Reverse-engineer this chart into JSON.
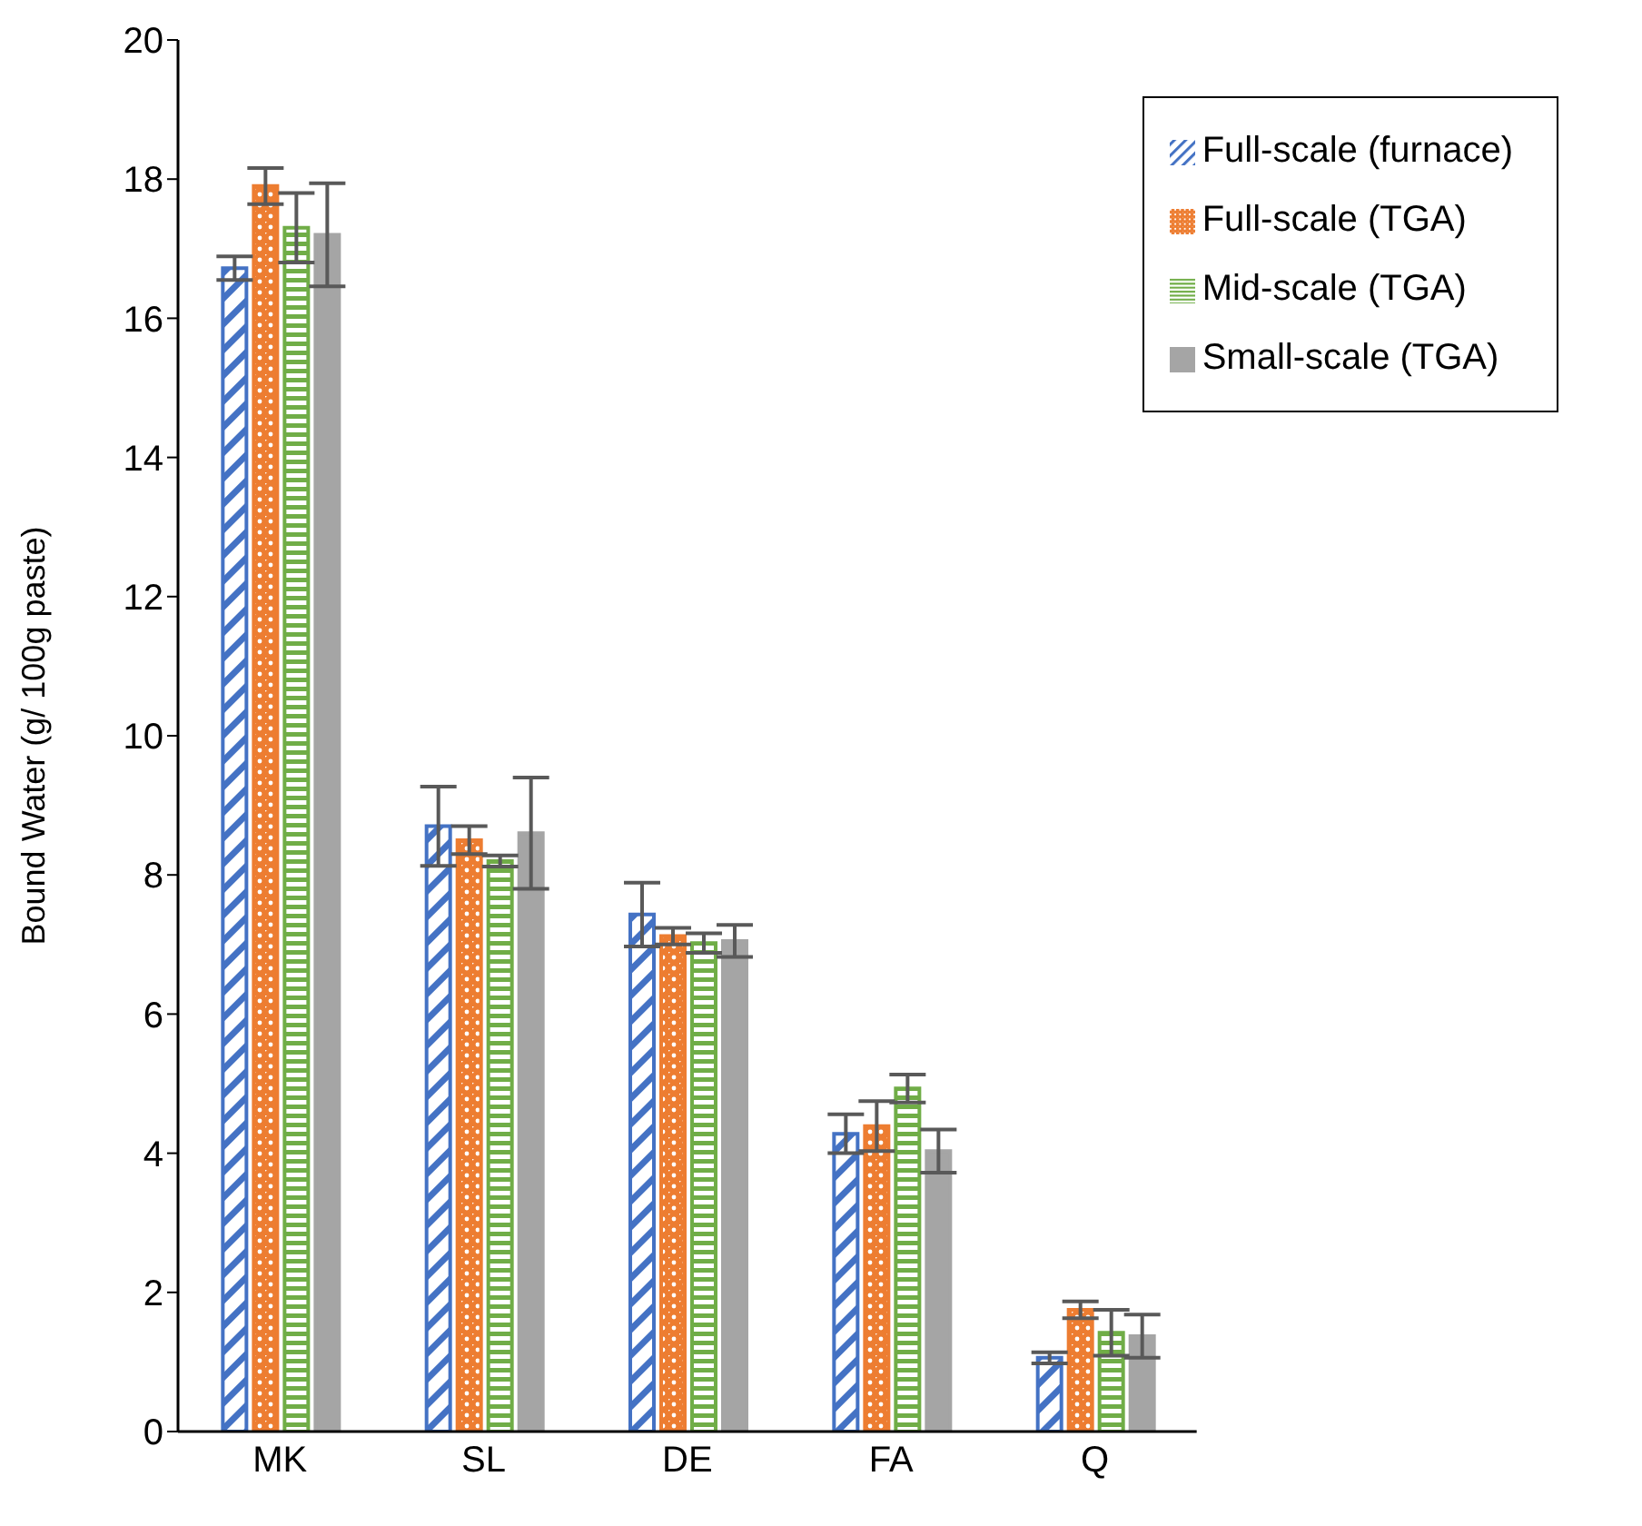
{
  "chart_data": {
    "type": "bar",
    "ylabel": "Bound Water (g/ 100g paste)",
    "categories": [
      "MK",
      "SL",
      "DE",
      "FA",
      "Q"
    ],
    "series": [
      {
        "name": "Full-scale (furnace)",
        "color": "#4472c4",
        "values": [
          16.72,
          8.7,
          7.43,
          4.28,
          1.06
        ],
        "errors": [
          0.17,
          0.57,
          0.46,
          0.28,
          0.08
        ]
      },
      {
        "name": "Full-scale (TGA)",
        "color": "#ed7d31",
        "values": [
          17.9,
          8.5,
          7.12,
          4.39,
          1.75
        ],
        "errors": [
          0.26,
          0.2,
          0.12,
          0.36,
          0.12
        ]
      },
      {
        "name": "Mid-scale (TGA)",
        "color": "#70ad47",
        "values": [
          17.3,
          8.2,
          7.02,
          4.93,
          1.42
        ],
        "errors": [
          0.5,
          0.08,
          0.14,
          0.2,
          0.33
        ]
      },
      {
        "name": "Small-scale (TGA)",
        "color": "#a5a5a5",
        "values": [
          17.2,
          8.6,
          7.05,
          4.03,
          1.37
        ],
        "errors": [
          0.74,
          0.8,
          0.23,
          0.31,
          0.31
        ]
      }
    ],
    "ylim": [
      0,
      20
    ],
    "yticks": [
      0,
      2,
      4,
      6,
      8,
      10,
      12,
      14,
      16,
      18,
      20
    ],
    "grid": false,
    "legend": "top right"
  }
}
